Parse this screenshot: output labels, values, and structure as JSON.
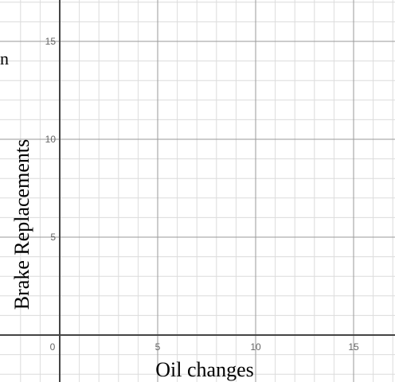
{
  "chart_data": {
    "type": "scatter",
    "title": "",
    "xlabel": "Oil changes",
    "ylabel": "Brake Replacements",
    "xlim": [
      -2,
      17
    ],
    "ylim": [
      -2,
      17
    ],
    "x_ticks": [
      0,
      5,
      10,
      15
    ],
    "y_ticks": [
      5,
      10,
      15
    ],
    "minor_step": 1,
    "grid": true,
    "series": [],
    "clipped_text": "n"
  },
  "colors": {
    "major_grid": "#9a9a9a",
    "minor_grid": "#dcdcdc",
    "axis": "#444444",
    "tick_label": "#666666"
  }
}
